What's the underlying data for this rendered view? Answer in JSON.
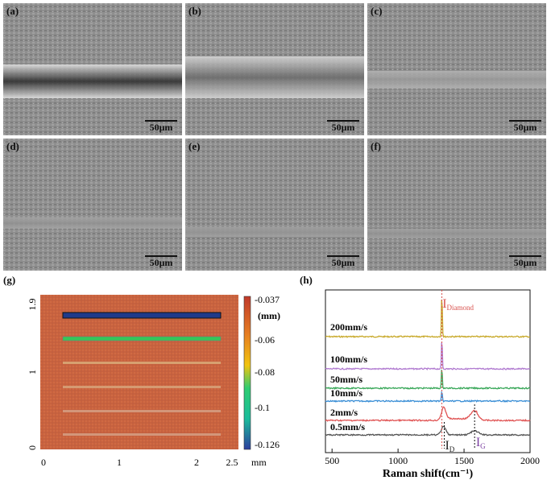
{
  "sem_panels": [
    {
      "label": "(a)",
      "scale": "50μm"
    },
    {
      "label": "(b)",
      "scale": "50μm"
    },
    {
      "label": "(c)",
      "scale": "50μm"
    },
    {
      "label": "(d)",
      "scale": "50μm"
    },
    {
      "label": "(e)",
      "scale": "50μm"
    },
    {
      "label": "(f)",
      "scale": "50μm"
    }
  ],
  "panel_g": {
    "label": "(g)",
    "y_ticks": [
      "1.9",
      "1",
      "0"
    ],
    "x_ticks": [
      "0",
      "1",
      "2",
      "2.5"
    ],
    "x_unit": "mm",
    "colorbar_ticks": [
      "-0.037",
      "-0.06",
      "-0.08",
      "-0.1",
      "-0.126"
    ],
    "colorbar_unit": "(mm)",
    "colorbar_range": [
      -0.126,
      -0.037
    ],
    "colors": {
      "surface": "#c9623e",
      "colorbar_top": "#c0392b",
      "colorbar_mid": "#2ecc71",
      "colorbar_bottom": "#2c3e9e"
    }
  },
  "chart_data": {
    "type": "line",
    "label": "(h)",
    "xlabel": "Raman shift(cm⁻¹)",
    "xlim": [
      450,
      2000
    ],
    "x_ticks": [
      "500",
      "1000",
      "1500",
      "2000"
    ],
    "series": [
      {
        "name": "200mm/s",
        "color": "#c8a92a",
        "peaks": [
          1332
        ]
      },
      {
        "name": "100mm/s",
        "color": "#b07ad0",
        "peaks": [
          1332
        ]
      },
      {
        "name": "50mm/s",
        "color": "#3aa85a",
        "peaks": [
          1332
        ]
      },
      {
        "name": "10mm/s",
        "color": "#3b8fd6",
        "peaks": [
          1332
        ]
      },
      {
        "name": "2mm/s",
        "color": "#e05555",
        "peaks": [
          1345,
          1580
        ]
      },
      {
        "name": "0.5mm/s",
        "color": "#555555",
        "peaks": [
          1345,
          1580
        ]
      }
    ],
    "annotations": {
      "diamond_main": "I",
      "diamond_sub": "Diamond",
      "d_main": "I",
      "d_sub": "D",
      "g_main": "I",
      "g_sub": "G"
    },
    "annotation_colors": {
      "diamond": "#d9534f",
      "d": "#222222",
      "g": "#7a3fa0"
    }
  }
}
